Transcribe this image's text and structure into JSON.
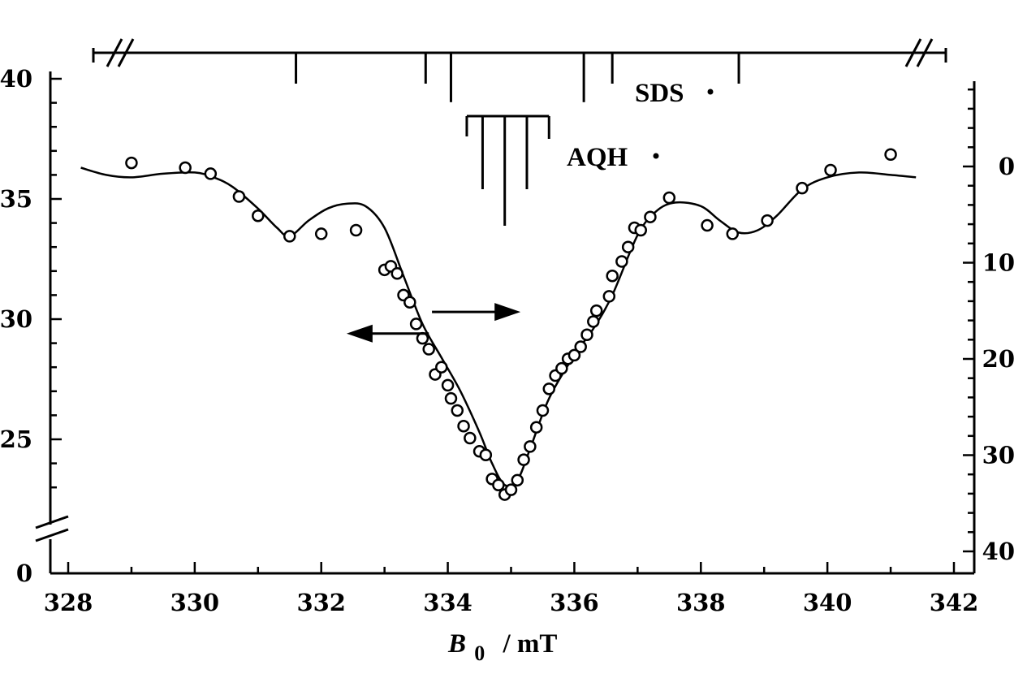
{
  "chart_data": {
    "type": "scatter",
    "xlabel_symbol": "B",
    "xlabel_subscript": "0",
    "xlabel_unit": "/ mT",
    "x_ticks": [
      "328",
      "330",
      "332",
      "334",
      "336",
      "338",
      "340",
      "342"
    ],
    "xlim": [
      328,
      342
    ],
    "left_y_ticks": [
      "0",
      "25",
      "30",
      "35",
      "40"
    ],
    "left_ylim": [
      22,
      40.5
    ],
    "right_y_ticks": [
      "0",
      "10",
      "20",
      "30",
      "40"
    ],
    "right_ylim": [
      -9,
      42
    ],
    "right_y_inverted": true,
    "scatter_points": [
      {
        "x": 329.0,
        "y": 36.5
      },
      {
        "x": 329.85,
        "y": 36.3
      },
      {
        "x": 330.25,
        "y": 36.05
      },
      {
        "x": 330.7,
        "y": 35.1
      },
      {
        "x": 331.0,
        "y": 34.3
      },
      {
        "x": 331.5,
        "y": 33.45
      },
      {
        "x": 332.0,
        "y": 33.55
      },
      {
        "x": 332.55,
        "y": 33.7
      },
      {
        "x": 333.0,
        "y": 32.05
      },
      {
        "x": 333.1,
        "y": 32.2
      },
      {
        "x": 333.2,
        "y": 31.9
      },
      {
        "x": 333.3,
        "y": 31.0
      },
      {
        "x": 333.4,
        "y": 30.7
      },
      {
        "x": 333.5,
        "y": 29.8
      },
      {
        "x": 333.6,
        "y": 29.2
      },
      {
        "x": 333.7,
        "y": 28.75
      },
      {
        "x": 333.8,
        "y": 27.7
      },
      {
        "x": 333.9,
        "y": 28.0
      },
      {
        "x": 334.0,
        "y": 27.25
      },
      {
        "x": 334.05,
        "y": 26.7
      },
      {
        "x": 334.15,
        "y": 26.2
      },
      {
        "x": 334.25,
        "y": 25.55
      },
      {
        "x": 334.35,
        "y": 25.05
      },
      {
        "x": 334.5,
        "y": 24.5
      },
      {
        "x": 334.6,
        "y": 24.35
      },
      {
        "x": 334.7,
        "y": 23.35
      },
      {
        "x": 334.8,
        "y": 23.1
      },
      {
        "x": 334.9,
        "y": 22.7
      },
      {
        "x": 335.0,
        "y": 22.9
      },
      {
        "x": 335.1,
        "y": 23.3
      },
      {
        "x": 335.2,
        "y": 24.15
      },
      {
        "x": 335.3,
        "y": 24.7
      },
      {
        "x": 335.4,
        "y": 25.5
      },
      {
        "x": 335.5,
        "y": 26.2
      },
      {
        "x": 335.6,
        "y": 27.1
      },
      {
        "x": 335.7,
        "y": 27.65
      },
      {
        "x": 335.8,
        "y": 27.95
      },
      {
        "x": 335.9,
        "y": 28.35
      },
      {
        "x": 336.0,
        "y": 28.5
      },
      {
        "x": 336.1,
        "y": 28.85
      },
      {
        "x": 336.2,
        "y": 29.35
      },
      {
        "x": 336.3,
        "y": 29.9
      },
      {
        "x": 336.35,
        "y": 30.35
      },
      {
        "x": 336.55,
        "y": 30.95
      },
      {
        "x": 336.6,
        "y": 31.8
      },
      {
        "x": 336.75,
        "y": 32.4
      },
      {
        "x": 336.85,
        "y": 33.0
      },
      {
        "x": 336.95,
        "y": 33.8
      },
      {
        "x": 337.05,
        "y": 33.7
      },
      {
        "x": 337.2,
        "y": 34.25
      },
      {
        "x": 337.5,
        "y": 35.05
      },
      {
        "x": 338.1,
        "y": 33.9
      },
      {
        "x": 338.5,
        "y": 33.55
      },
      {
        "x": 339.05,
        "y": 34.1
      },
      {
        "x": 339.6,
        "y": 35.45
      },
      {
        "x": 340.05,
        "y": 36.2
      },
      {
        "x": 341.0,
        "y": 36.85
      }
    ],
    "line_points": [
      [
        328.2,
        36.3
      ],
      [
        328.6,
        36.0
      ],
      [
        329.0,
        35.9
      ],
      [
        329.5,
        36.05
      ],
      [
        330.0,
        36.1
      ],
      [
        330.3,
        35.9
      ],
      [
        330.6,
        35.5
      ],
      [
        331.0,
        34.6
      ],
      [
        331.3,
        33.8
      ],
      [
        331.5,
        33.45
      ],
      [
        331.8,
        34.1
      ],
      [
        332.1,
        34.6
      ],
      [
        332.4,
        34.8
      ],
      [
        332.7,
        34.7
      ],
      [
        333.0,
        33.8
      ],
      [
        333.3,
        31.8
      ],
      [
        333.6,
        29.8
      ],
      [
        333.9,
        28.4
      ],
      [
        334.2,
        27.0
      ],
      [
        334.5,
        25.3
      ],
      [
        334.7,
        24.0
      ],
      [
        334.9,
        23.1
      ],
      [
        335.1,
        23.3
      ],
      [
        335.3,
        24.6
      ],
      [
        335.6,
        26.7
      ],
      [
        336.0,
        28.5
      ],
      [
        336.3,
        29.6
      ],
      [
        336.6,
        31.0
      ],
      [
        337.0,
        33.5
      ],
      [
        337.3,
        34.5
      ],
      [
        337.6,
        34.85
      ],
      [
        338.0,
        34.7
      ],
      [
        338.3,
        34.1
      ],
      [
        338.6,
        33.6
      ],
      [
        338.9,
        33.7
      ],
      [
        339.2,
        34.3
      ],
      [
        339.6,
        35.4
      ],
      [
        340.0,
        35.9
      ],
      [
        340.5,
        36.1
      ],
      [
        341.0,
        36.0
      ],
      [
        341.4,
        35.9
      ]
    ],
    "sds_sticks": [
      {
        "x": 331.6,
        "length": 1.0
      },
      {
        "x": 333.65,
        "length": 1.0
      },
      {
        "x": 334.05,
        "length": 1.6
      },
      {
        "x": 336.15,
        "length": 1.6
      },
      {
        "x": 336.6,
        "length": 1.0
      },
      {
        "x": 338.6,
        "length": 1.0
      }
    ],
    "aqh_sticks": [
      {
        "x": 334.55,
        "length": 2.0
      },
      {
        "x": 334.9,
        "length": 3.0
      },
      {
        "x": 335.25,
        "length": 2.0
      }
    ],
    "aqh_bracket": [
      334.3,
      335.6
    ],
    "sds_label": "SDS",
    "aqh_label": "AQH",
    "arrow_right": {
      "from": 333.75,
      "to": 335.15,
      "y": 30.3
    },
    "arrow_left": {
      "from": 333.7,
      "to": 332.4,
      "y": 29.4
    },
    "grid": false,
    "legend": "none"
  }
}
